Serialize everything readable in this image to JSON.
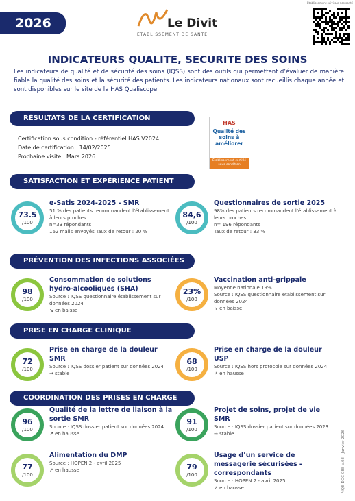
{
  "header": {
    "year": "2026",
    "logo_name": "Le Divit",
    "logo_sub": "ÉTABLISSEMENT DE SANTÉ",
    "qr_caption": "Établissement suivi sur nos santé"
  },
  "title": "INDICATEURS QUALITE, SECURITE DES SOINS",
  "intro": "Les indicateurs de qualité et de sécurité des soins (IQSS) sont des outils qui permettent d’évaluer de manière fiable la qualité des soins et la sécurité des patients. Les indicateurs nationaux sont recueillis chaque année et sont disponibles sur le site de la HAS Qualiscope.",
  "certification": {
    "heading": "RÉSULTATS DE LA CERTIFICATION",
    "lines": [
      "Certification sous condition - référentiel HAS V2024",
      "Date de certification : 14/02/2025",
      "Prochaine visite : Mars 2026"
    ],
    "badge": {
      "logo": "HAS",
      "label": "Qualité des soins à améliorer",
      "footer": "Établissement certifié sous condition"
    }
  },
  "sections": [
    {
      "heading": "SATISFACTION ET EXPÉRIENCE PATIENT",
      "items": [
        {
          "score": "73.5",
          "denominator": "/100",
          "color": "#4bbcc0",
          "title": "e-Satis 2024-2025 - SMR",
          "lines": [
            "51 % des patients recommandent l’établissement à leurs proches",
            "n=33 répondants",
            "162 mails envoyés  Taux de retour : 20 %"
          ]
        },
        {
          "score": "84,6",
          "denominator": "/100",
          "color": "#4bbcc0",
          "title": "Questionnaires de sortie 2025",
          "lines": [
            "98% des patients recommandent l’établissement à leurs proches",
            "n= 196 répondants",
            "Taux de retour : 33 %"
          ]
        }
      ]
    },
    {
      "heading": "PRÉVENTION DES INFECTIONS ASSOCIÉES AUX SOINS",
      "items": [
        {
          "score": "98",
          "denominator": "/100",
          "color": "#8cc63f",
          "title": "Consommation de solutions hydro-alcooliques (SHA)",
          "lines": [
            "Source : IQSS questionnaire établissement sur données 2024",
            "↘ en baisse"
          ]
        },
        {
          "score": "23%",
          "denominator": "/100",
          "color": "#f5b041",
          "title": "Vaccination anti-grippale",
          "lines": [
            "Moyenne nationale 19%",
            "Source : IQSS questionnaire établissement sur données 2024",
            "↘ en baisse"
          ]
        }
      ]
    },
    {
      "heading": "PRISE EN CHARGE CLINIQUE",
      "items": [
        {
          "score": "72",
          "denominator": "/100",
          "color": "#8cc63f",
          "title": "Prise en charge de la douleur SMR",
          "lines": [
            "Source : IQSS dossier patient sur données 2024",
            "→ stable"
          ]
        },
        {
          "score": "68",
          "denominator": "/100",
          "color": "#f5b041",
          "title": "Prise en charge de la douleur USP",
          "lines": [
            "Source : IQSS hors protocole sur données 2024",
            "↗ en hausse"
          ]
        }
      ]
    },
    {
      "heading": "COORDINATION DES PRISES EN CHARGE",
      "items": [
        {
          "score": "96",
          "denominator": "/100",
          "color": "#3aa35c",
          "title": "Qualité de la lettre de liaison à la sortie SMR",
          "lines": [
            "Source : IQSS dossier patient sur données 2024",
            "↗ en hausse"
          ]
        },
        {
          "score": "91",
          "denominator": "/100",
          "color": "#3aa35c",
          "title": "Projet de soins, projet de vie SMR",
          "lines": [
            "Source : IQSS dossier patient sur données 2023",
            "→ stable"
          ]
        },
        {
          "score": "77",
          "denominator": "/100",
          "color": "#a5d36a",
          "title": "Alimentation du DMP",
          "lines": [
            "Source : HOPEN 2 - avril 2025",
            "↗ en hausse"
          ]
        },
        {
          "score": "79",
          "denominator": "/100",
          "color": "#a5d36a",
          "title": "Usage d’un service de messagerie sécurisées - correspondants",
          "lines": [
            "Source : HOPEN 2 - avril 2025",
            "↗ en hausse"
          ]
        }
      ]
    }
  ],
  "footer": "MQE-DOC-088 V.03 - Janvier 2026"
}
